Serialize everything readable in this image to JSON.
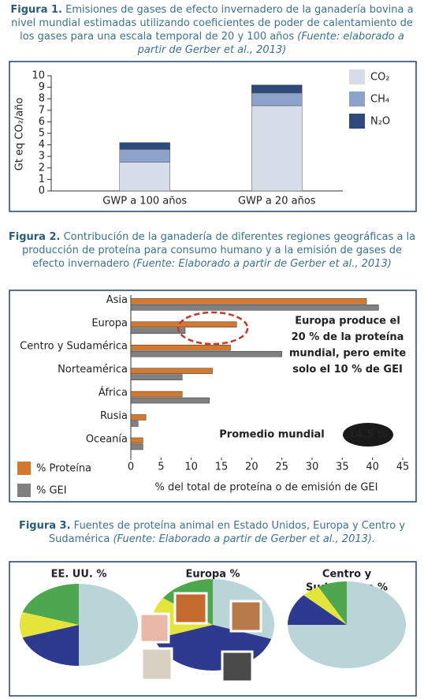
{
  "chart_data": [
    {
      "type": "bar",
      "stacked": true,
      "title": {
        "label": "Figura 1.",
        "text": "Emisiones de gases de efecto invernadero de la ganadería bovina a nivel mundial estimadas utilizando coeficientes de poder de calentamiento de los gases para una escala temporal de 20 y 100 años",
        "source": "(Fuente: elaborado a partir de Gerber et al., 2013)"
      },
      "ylabel": "Gt eq CO₂/año",
      "categories": [
        "GWP a 100 años",
        "GWP a 20 años"
      ],
      "series": [
        {
          "name": "CO₂",
          "color": "#d6dde9",
          "values": [
            2.5,
            7.4
          ]
        },
        {
          "name": "CH₄",
          "color": "#8ea3cb",
          "values": [
            1.1,
            1.1
          ]
        },
        {
          "name": "N₂O",
          "color": "#2e4a7d",
          "values": [
            0.6,
            0.7
          ]
        }
      ],
      "ylim": [
        0,
        10
      ],
      "yticks": [
        0,
        1,
        2,
        3,
        4,
        5,
        6,
        7,
        8,
        9,
        10
      ]
    },
    {
      "type": "bar",
      "orientation": "horizontal",
      "title": {
        "label": "Figura 2.",
        "text": "Contribución de la ganadería de diferentes regiones geográficas a la producción de proteína para consumo humano y a la emisión de gases de efecto invernadero",
        "source": "(Fuente: Elaborado a partir de Gerber et al., 2013)"
      },
      "xlabel": "% del total de proteína o de emisión de GEI",
      "categories": [
        "Asia",
        "Europa",
        "Centro y Sudamérica",
        "Norteamérica",
        "África",
        "Rusia",
        "Oceanía"
      ],
      "series": [
        {
          "name": "% Proteína",
          "color": "#d2782f",
          "values": [
            39,
            17.5,
            16.5,
            13.5,
            8.5,
            2.5,
            2
          ]
        },
        {
          "name": "% GEI",
          "color": "#808080",
          "values": [
            41,
            9,
            25,
            8.5,
            13,
            1.2,
            2
          ]
        }
      ],
      "xlim": [
        0,
        45
      ],
      "xticks": [
        0,
        5,
        10,
        15,
        20,
        25,
        30,
        35,
        40,
        45
      ],
      "annotation": [
        "Europa produce el",
        "20 % de la proteína",
        "mundial, pero emite",
        "solo el 10 % de GEI"
      ],
      "average_label": "Promedio mundial",
      "average": "14,5 %"
    },
    {
      "type": "pie",
      "title": {
        "label": "Figura 3.",
        "text": "Fuentes de proteína animal en Estado Unidos, Europa y Centro y Sudamérica",
        "source": "(Fuente: Elaborado a partir de Gerber et al., 2013)."
      },
      "colors": [
        "#b9d5d8",
        "#2e3a8f",
        "#e3e53a",
        "#4ea64e"
      ],
      "pies": [
        {
          "title": [
            "EE. UU. %"
          ],
          "values": [
            50,
            20,
            10,
            20
          ]
        },
        {
          "title": [
            "Europa %"
          ],
          "values": [
            30,
            40,
            15,
            15
          ]
        },
        {
          "title": [
            "Centro y",
            "Sudamérica %"
          ],
          "values": [
            75,
            12,
            5,
            8
          ]
        }
      ]
    }
  ]
}
